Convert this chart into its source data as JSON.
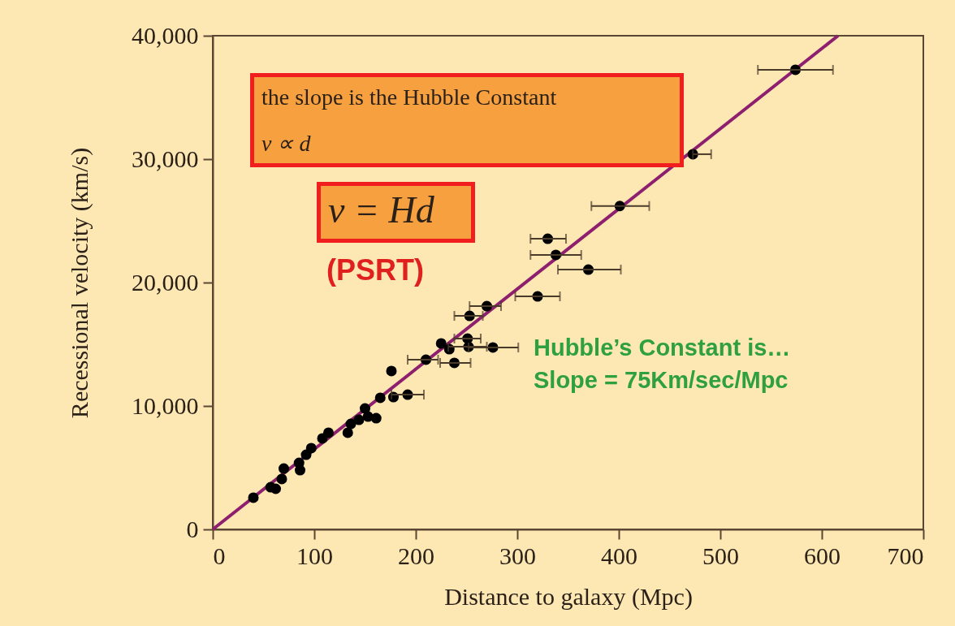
{
  "chart_data": {
    "type": "scatter",
    "xlabel": "Distance to galaxy (Mpc)",
    "ylabel": "Recessional velocity (km/s)",
    "xlim": [
      0,
      700
    ],
    "ylim": [
      0,
      40000
    ],
    "xticks": [
      0,
      100,
      200,
      300,
      400,
      500,
      600,
      700
    ],
    "yticks": [
      0,
      {
        "value": 10000,
        "label": "10,000"
      },
      {
        "value": 20000,
        "label": "20,000"
      },
      {
        "value": 30000,
        "label": "30,000"
      },
      {
        "value": 40000,
        "label": "40,000"
      }
    ],
    "series": [
      {
        "marker": "circle",
        "color": "#000000",
        "x": [
          574,
          473,
          401,
          330,
          338,
          370,
          320,
          270,
          253,
          251,
          225,
          233,
          252,
          276,
          210,
          238,
          176,
          165,
          178,
          192,
          150,
          161,
          153,
          144,
          136,
          133,
          114,
          108,
          97,
          92,
          85,
          70,
          86,
          68,
          57,
          62,
          40
        ],
        "values": [
          37240,
          30400,
          26200,
          23550,
          22240,
          21050,
          18880,
          18090,
          17300,
          15460,
          15070,
          14600,
          14800,
          14740,
          13750,
          13490,
          12830,
          10660,
          10720,
          10920,
          9800,
          9010,
          9140,
          8880,
          8550,
          7830,
          7830,
          7370,
          6580,
          6050,
          5390,
          4930,
          4800,
          4080,
          3420,
          3290,
          2570
        ],
        "xerrors": [
          [
            537,
            611
          ],
          [
            473,
            491
          ],
          [
            373,
            430
          ],
          [
            313,
            348
          ],
          [
            313,
            363
          ],
          [
            340,
            402
          ],
          [
            298,
            342
          ],
          [
            253,
            284
          ],
          [
            238,
            266
          ],
          [
            238,
            264
          ],
          null,
          null,
          [
            232,
            270
          ],
          [
            252,
            301
          ],
          [
            192,
            222
          ],
          [
            224,
            254
          ],
          null,
          null,
          null,
          [
            176,
            208
          ],
          null,
          null,
          null,
          null,
          null,
          null,
          null,
          null,
          null,
          null,
          null,
          null,
          null,
          null,
          null,
          null,
          null
        ]
      },
      {
        "type": "line",
        "color": "#8e1f6e",
        "x": [
          0,
          616
        ],
        "values": [
          0,
          40000
        ]
      }
    ],
    "annotations": [
      "the slope is the Hubble Constant",
      "v ∝ d",
      "v = Hd",
      "(PSRT)",
      "Hubble’s Constant is…",
      "Slope = 75Km/sec/Mpc"
    ]
  }
}
